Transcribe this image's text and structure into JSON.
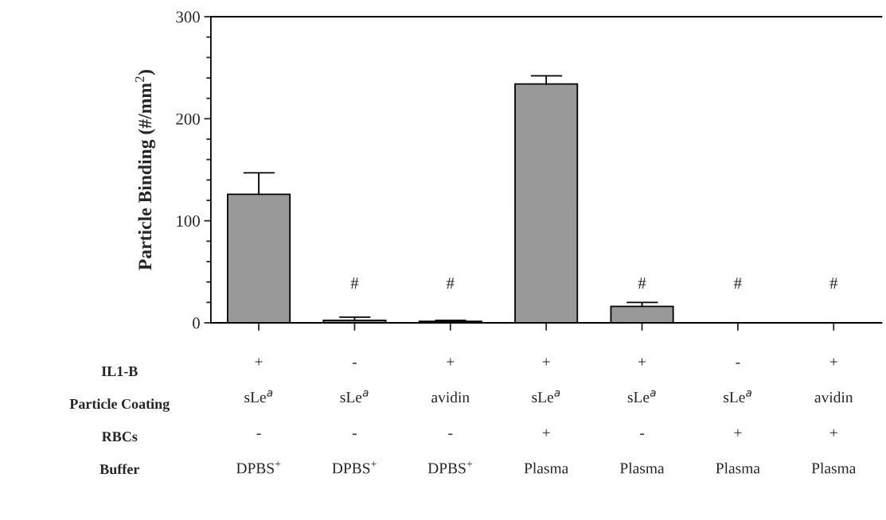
{
  "chart_data": {
    "type": "bar",
    "ylabel": "Particle Binding (#/mm$^{2}$)",
    "categories": [
      "+\nsLe$^{a}$\n-\nDPBS$^{+}$",
      "-\nsLe$^{a}$\n-\nDPBS$^{+}$",
      "+\navidin\n-\nDPBS$^{+}$",
      "+\nsLe$^{a}$\n+\nPlasma",
      "+\nsLe$^{a}$\n-\nPlasma",
      "-\nsLe$^{a}$\n+\nPlasma",
      "+\navidin\n+\nPlasma"
    ],
    "values": [
      126,
      2.5,
      1.4,
      234,
      16,
      0,
      0
    ],
    "errors": [
      [
        126,
        147
      ],
      [
        2.5,
        5.5
      ],
      [
        1.4,
        2.4
      ],
      [
        234,
        242
      ],
      [
        16,
        20
      ],
      null,
      null
    ],
    "value_labels": [
      null,
      "#",
      "#",
      null,
      "#",
      "#",
      "#"
    ],
    "color": "#999999",
    "ylim": [
      0,
      300
    ],
    "yticks": [
      0,
      {
        "value": 20,
        "label": null
      },
      {
        "value": 40,
        "label": null
      },
      {
        "value": 60,
        "label": null
      },
      {
        "value": 80,
        "label": null
      },
      100,
      {
        "value": 120,
        "label": null
      },
      {
        "value": 140,
        "label": null
      },
      {
        "value": 160,
        "label": null
      },
      {
        "value": 180,
        "label": null
      },
      200,
      {
        "value": 220,
        "label": null
      },
      {
        "value": 240,
        "label": null
      },
      {
        "value": 260,
        "label": null
      },
      {
        "value": 280,
        "label": null
      },
      300
    ],
    "annotations": [
      "IL1-B",
      "Particle Coating",
      "RBCs",
      "Buffer"
    ],
    "grid": false
  }
}
